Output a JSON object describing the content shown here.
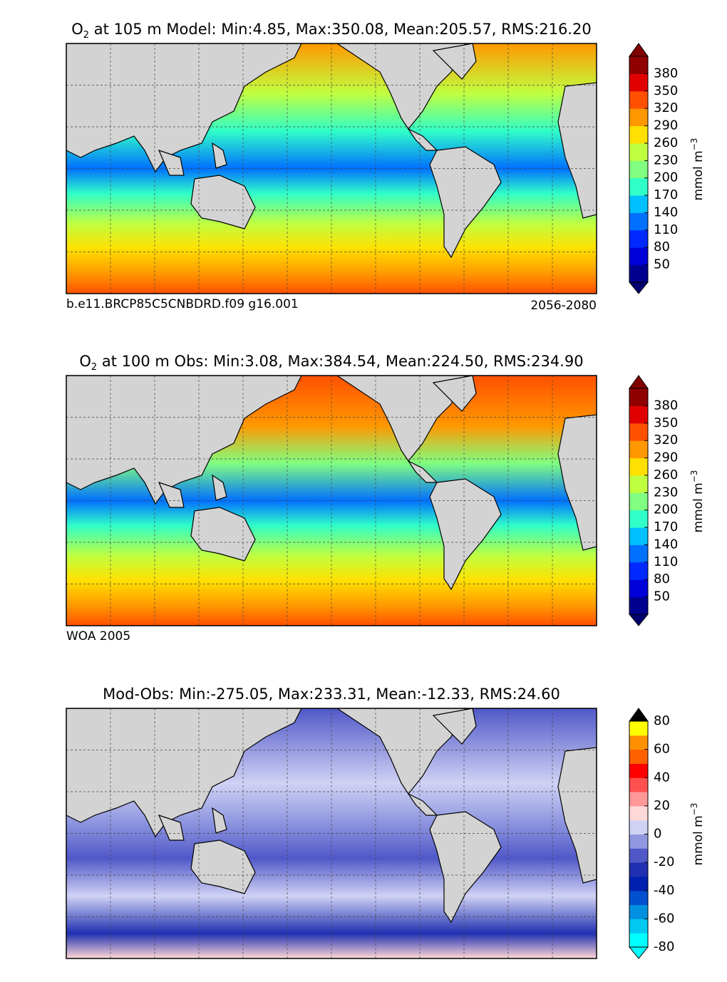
{
  "panels": [
    {
      "title_chem": "O",
      "title_sub": "2",
      "title": " at 105 m Model: Min:4.85, Max:350.08, Mean:205.57, RMS:216.20",
      "footer_left": "b.e11.BRCP85C5CNBDRD.f09 g16.001",
      "footer_right": "2056-2080",
      "colorbar": {
        "clim": [
          20,
          410
        ],
        "ticks": [
          50,
          80,
          110,
          140,
          170,
          200,
          230,
          260,
          290,
          320,
          350,
          380
        ],
        "colors": [
          "#000090",
          "#0000d8",
          "#0028ff",
          "#0070ff",
          "#00c0ff",
          "#30ffc8",
          "#80ff80",
          "#c0ff40",
          "#ffe000",
          "#ff9800",
          "#ff5000",
          "#e00000",
          "#900000"
        ],
        "under": "#000070",
        "over": "#800000",
        "label": "mmol m",
        "label_sup": "−3"
      }
    },
    {
      "title_chem": "O",
      "title_sub": "2",
      "title": " at 100 m Obs: Min:3.08, Max:384.54, Mean:224.50, RMS:234.90",
      "footer_left": "WOA 2005",
      "colorbar": {
        "clim": [
          20,
          410
        ],
        "ticks": [
          50,
          80,
          110,
          140,
          170,
          200,
          230,
          260,
          290,
          320,
          350,
          380
        ],
        "colors": [
          "#000090",
          "#0000d8",
          "#0028ff",
          "#0070ff",
          "#00c0ff",
          "#30ffc8",
          "#80ff80",
          "#c0ff40",
          "#ffe000",
          "#ff9800",
          "#ff5000",
          "#e00000",
          "#900000"
        ],
        "under": "#000070",
        "over": "#800000",
        "label": "mmol m",
        "label_sup": "−3"
      }
    },
    {
      "title": "Mod-Obs: Min:-275.05, Max:233.31, Mean:-12.33, RMS:24.60",
      "colorbar": {
        "clim": [
          -80,
          80
        ],
        "ticks": [
          -80,
          -60,
          -40,
          -20,
          0,
          20,
          40,
          60,
          80
        ],
        "colors": [
          "#00ffff",
          "#00c8f0",
          "#0090e0",
          "#0050d0",
          "#0020b0",
          "#2030b0",
          "#5058c8",
          "#9098e0",
          "#d0d2f4",
          "#ffd8d8",
          "#ff9898",
          "#ff5050",
          "#ff0000",
          "#ff6000",
          "#ff9000",
          "#ffff00"
        ],
        "under": "#00ffff",
        "over": "#000000",
        "label": "mmol m",
        "label_sup": "−3"
      }
    }
  ]
}
